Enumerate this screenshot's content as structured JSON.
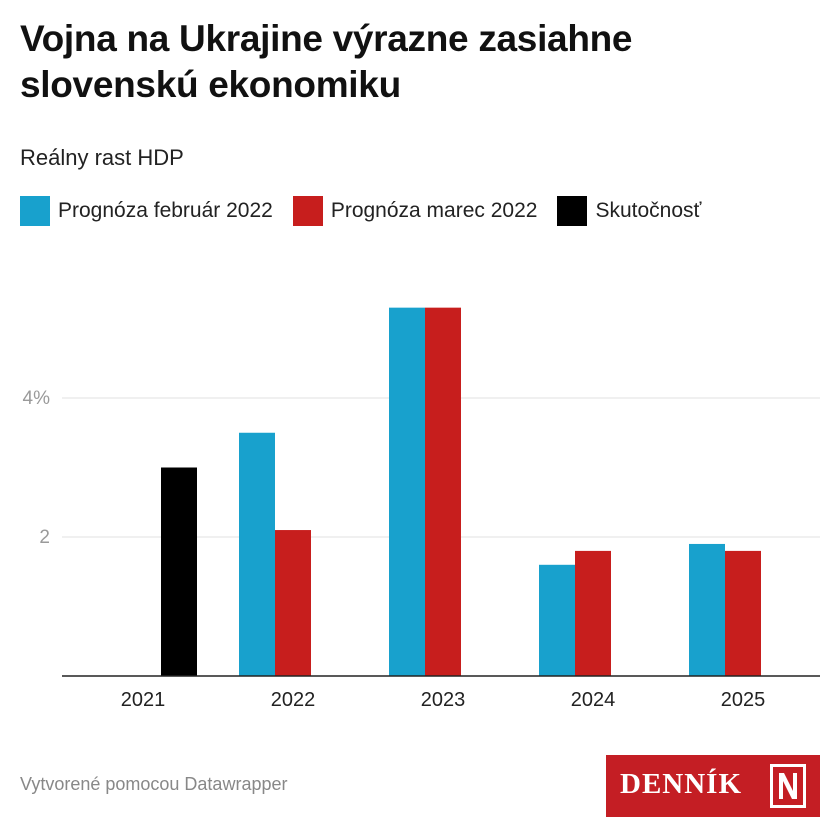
{
  "header": {
    "title": "Vojna na Ukrajine výrazne zasiahne slovenskú ekonomiku",
    "subtitle": "Reálny rast HDP"
  },
  "legend": {
    "items": [
      {
        "label": "Prognóza február 2022",
        "color": "#18a1cd"
      },
      {
        "label": "Prognóza marec 2022",
        "color": "#c71e1d"
      },
      {
        "label": "Skutočnosť",
        "color": "#000000"
      }
    ]
  },
  "chart_data": {
    "type": "bar",
    "title": "Vojna na Ukrajine výrazne zasiahne slovenskú ekonomiku",
    "subtitle": "Reálny rast HDP",
    "xlabel": "",
    "ylabel": "",
    "categories": [
      "2021",
      "2022",
      "2023",
      "2024",
      "2025"
    ],
    "series": [
      {
        "name": "Prognóza február 2022",
        "color": "#18a1cd",
        "values": [
          null,
          3.5,
          5.3,
          1.6,
          1.9
        ]
      },
      {
        "name": "Prognóza marec 2022",
        "color": "#c71e1d",
        "values": [
          null,
          2.1,
          5.3,
          1.8,
          1.8
        ]
      },
      {
        "name": "Skutočnosť",
        "color": "#000000",
        "values": [
          3.0,
          null,
          null,
          null,
          null
        ]
      }
    ],
    "y_ticks": [
      {
        "value": 2,
        "label": "2"
      },
      {
        "value": 4,
        "label": "4%"
      }
    ],
    "ylim": [
      0,
      5.5
    ],
    "grid": true,
    "legend_position": "top-left"
  },
  "footer": {
    "credit": "Vytvorené pomocou Datawrapper",
    "logo_text": "DENNÍK",
    "logo_color": "#c41e24"
  }
}
